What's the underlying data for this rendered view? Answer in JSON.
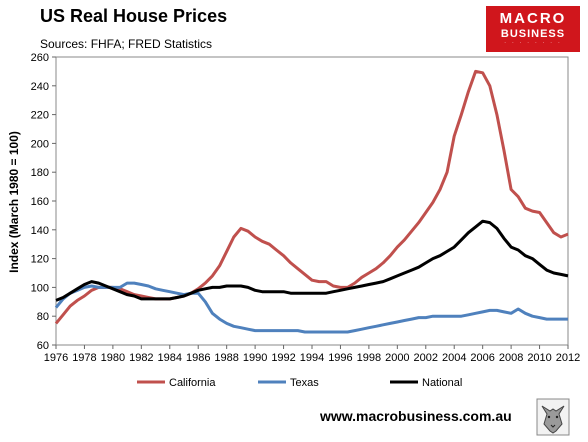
{
  "chart_data": {
    "type": "line",
    "title": "US Real House Prices",
    "subtitle": "Sources: FHFA; FRED Statistics",
    "xlabel": "",
    "ylabel": "Index (March 1980 = 100)",
    "xlim": [
      1976,
      2012
    ],
    "ylim": [
      60,
      260
    ],
    "xticks": [
      1976,
      1978,
      1980,
      1982,
      1984,
      1986,
      1988,
      1990,
      1992,
      1994,
      1996,
      1998,
      2000,
      2002,
      2004,
      2006,
      2008,
      2010,
      2012
    ],
    "yticks": [
      60,
      80,
      100,
      120,
      140,
      160,
      180,
      200,
      220,
      240,
      260
    ],
    "grid": false,
    "legend": "bottom",
    "series": [
      {
        "name": "California",
        "color": "#c0504d",
        "x": [
          1976,
          1976.5,
          1977,
          1977.5,
          1978,
          1978.5,
          1979,
          1979.5,
          1980,
          1980.5,
          1981,
          1981.5,
          1982,
          1982.5,
          1983,
          1983.5,
          1984,
          1984.5,
          1985,
          1985.5,
          1986,
          1986.5,
          1987,
          1987.5,
          1988,
          1988.5,
          1989,
          1989.5,
          1990,
          1990.5,
          1991,
          1991.5,
          1992,
          1992.5,
          1993,
          1993.5,
          1994,
          1994.5,
          1995,
          1995.5,
          1996,
          1996.5,
          1997,
          1997.5,
          1998,
          1998.5,
          1999,
          1999.5,
          2000,
          2000.5,
          2001,
          2001.5,
          2002,
          2002.5,
          2003,
          2003.5,
          2004,
          2004.5,
          2005,
          2005.5,
          2006,
          2006.5,
          2007,
          2007.5,
          2008,
          2008.5,
          2009,
          2009.5,
          2010,
          2010.5,
          2011,
          2011.5,
          2012
        ],
        "values": [
          75,
          81,
          87,
          91,
          94,
          98,
          100,
          100,
          100,
          99,
          97,
          95,
          94,
          93,
          92,
          92,
          92,
          93,
          94,
          96,
          99,
          103,
          108,
          115,
          125,
          135,
          141,
          139,
          135,
          132,
          130,
          126,
          122,
          117,
          113,
          109,
          105,
          104,
          104,
          101,
          100,
          100,
          103,
          107,
          110,
          113,
          117,
          122,
          128,
          133,
          139,
          145,
          152,
          159,
          168,
          180,
          205,
          220,
          236,
          250,
          249,
          240,
          220,
          195,
          168,
          163,
          155,
          153,
          152,
          145,
          138,
          135,
          137
        ]
      },
      {
        "name": "Texas",
        "color": "#4f81bd",
        "x": [
          1976,
          1976.5,
          1977,
          1977.5,
          1978,
          1978.5,
          1979,
          1979.5,
          1980,
          1980.5,
          1981,
          1981.5,
          1982,
          1982.5,
          1983,
          1983.5,
          1984,
          1984.5,
          1985,
          1985.5,
          1986,
          1986.5,
          1987,
          1987.5,
          1988,
          1988.5,
          1989,
          1989.5,
          1990,
          1990.5,
          1991,
          1991.5,
          1992,
          1992.5,
          1993,
          1993.5,
          1994,
          1994.5,
          1995,
          1995.5,
          1996,
          1996.5,
          1997,
          1997.5,
          1998,
          1998.5,
          1999,
          1999.5,
          2000,
          2000.5,
          2001,
          2001.5,
          2002,
          2002.5,
          2003,
          2003.5,
          2004,
          2004.5,
          2005,
          2005.5,
          2006,
          2006.5,
          2007,
          2007.5,
          2008,
          2008.5,
          2009,
          2009.5,
          2010,
          2010.5,
          2011,
          2011.5,
          2012
        ],
        "values": [
          86,
          92,
          96,
          98,
          100,
          101,
          100,
          100,
          100,
          100,
          103,
          103,
          102,
          101,
          99,
          98,
          97,
          96,
          95,
          96,
          96,
          90,
          82,
          78,
          75,
          73,
          72,
          71,
          70,
          70,
          70,
          70,
          70,
          70,
          70,
          69,
          69,
          69,
          69,
          69,
          69,
          69,
          70,
          71,
          72,
          73,
          74,
          75,
          76,
          77,
          78,
          79,
          79,
          80,
          80,
          80,
          80,
          80,
          81,
          82,
          83,
          84,
          84,
          83,
          82,
          85,
          82,
          80,
          79,
          78,
          78,
          78,
          78
        ]
      },
      {
        "name": "National",
        "color": "#000000",
        "x": [
          1976,
          1976.5,
          1977,
          1977.5,
          1978,
          1978.5,
          1979,
          1979.5,
          1980,
          1980.5,
          1981,
          1981.5,
          1982,
          1982.5,
          1983,
          1983.5,
          1984,
          1984.5,
          1985,
          1985.5,
          1986,
          1986.5,
          1987,
          1987.5,
          1988,
          1988.5,
          1989,
          1989.5,
          1990,
          1990.5,
          1991,
          1991.5,
          1992,
          1992.5,
          1993,
          1993.5,
          1994,
          1994.5,
          1995,
          1995.5,
          1996,
          1996.5,
          1997,
          1997.5,
          1998,
          1998.5,
          1999,
          1999.5,
          2000,
          2000.5,
          2001,
          2001.5,
          2002,
          2002.5,
          2003,
          2003.5,
          2004,
          2004.5,
          2005,
          2005.5,
          2006,
          2006.5,
          2007,
          2007.5,
          2008,
          2008.5,
          2009,
          2009.5,
          2010,
          2010.5,
          2011,
          2011.5,
          2012
        ],
        "values": [
          91,
          93,
          96,
          99,
          102,
          104,
          103,
          101,
          99,
          97,
          95,
          94,
          92,
          92,
          92,
          92,
          92,
          93,
          94,
          96,
          98,
          99,
          100,
          100,
          101,
          101,
          101,
          100,
          98,
          97,
          97,
          97,
          97,
          96,
          96,
          96,
          96,
          96,
          96,
          97,
          98,
          99,
          100,
          101,
          102,
          103,
          104,
          106,
          108,
          110,
          112,
          114,
          117,
          120,
          122,
          125,
          128,
          133,
          138,
          142,
          146,
          145,
          141,
          134,
          128,
          126,
          122,
          120,
          116,
          112,
          110,
          109,
          108
        ]
      }
    ]
  },
  "footer": {
    "url": "www.macrobusiness.com.au"
  },
  "logo": {
    "line1": "MACRO",
    "line2": "BUSINESS"
  }
}
